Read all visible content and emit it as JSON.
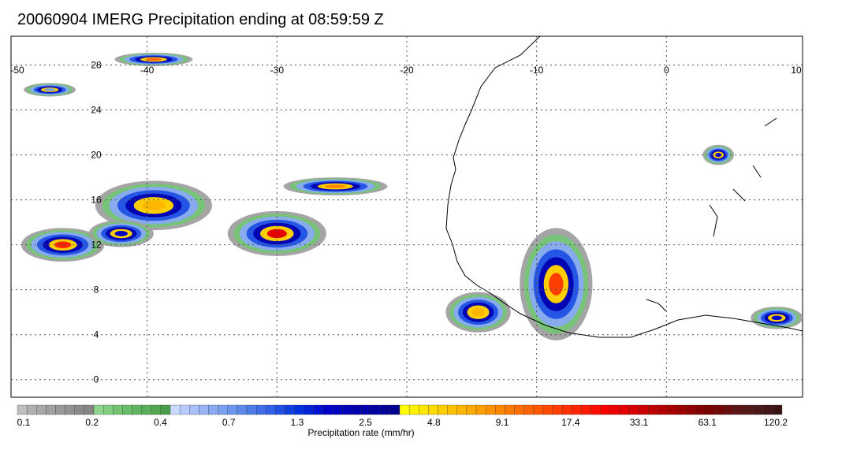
{
  "title": "20060904 IMERG Precipitation ending at 08:59:59 Z",
  "map": {
    "lon_range": [
      -50,
      10
    ],
    "lat_range": [
      -1,
      30
    ],
    "lon_ticks": [
      "-50",
      "-40",
      "-30",
      "-20",
      "-10",
      "0",
      "10"
    ],
    "lon_values": [
      -50,
      -40,
      -30,
      -20,
      -10,
      0,
      10
    ],
    "lat_ticks": [
      "0",
      "4",
      "8",
      "12",
      "16",
      "20",
      "24",
      "28"
    ],
    "lat_values": [
      0,
      4,
      8,
      12,
      16,
      20,
      24,
      28
    ],
    "grid": true,
    "coastline": "West Africa"
  },
  "colorbar": {
    "title": "Precipitation rate (mm/hr)",
    "labels": [
      "0.1",
      "0.2",
      "0.4",
      "0.7",
      "1.3",
      "2.5",
      "4.8",
      "9.1",
      "17.4",
      "33.1",
      "63.1",
      "120.2"
    ],
    "colors": [
      "#bdbdbd",
      "#b0b0b0",
      "#a8a8a8",
      "#a0a0a0",
      "#999999",
      "#929292",
      "#8a8a8a",
      "#858585",
      "#8fd48f",
      "#80cc80",
      "#74c474",
      "#6abd6a",
      "#62b562",
      "#5aad5a",
      "#52a552",
      "#4a9d4a",
      "#c8d8ff",
      "#b8ccff",
      "#a8c0fa",
      "#98b4f5",
      "#88aaf2",
      "#7aa0f0",
      "#6c96ee",
      "#5c8aec",
      "#4e7cea",
      "#3f6ee8",
      "#3060e6",
      "#2050e4",
      "#1040e0",
      "#0030dc",
      "#0020d8",
      "#0010d0",
      "#0000c8",
      "#0000c0",
      "#0000b8",
      "#0000b0",
      "#0000a8",
      "#0000a0",
      "#000098",
      "#000090",
      "#ffff00",
      "#fff200",
      "#ffe600",
      "#ffda00",
      "#ffce00",
      "#ffc200",
      "#ffb600",
      "#ffaa00",
      "#ff9e00",
      "#ff9200",
      "#ff8600",
      "#ff7a00",
      "#ff6e00",
      "#ff6200",
      "#ff5600",
      "#ff4a00",
      "#ff3e00",
      "#ff3200",
      "#ff2600",
      "#ff1a00",
      "#ff0e00",
      "#f80000",
      "#ee0000",
      "#e40000",
      "#d80000",
      "#cc0000",
      "#c00000",
      "#b40000",
      "#a80000",
      "#9c0000",
      "#900000",
      "#840000",
      "#7a0000",
      "#700808",
      "#661010",
      "#5c1414",
      "#521818",
      "#4a1818",
      "#421616",
      "#3a1414"
    ]
  },
  "storms": [
    {
      "lon": -46.5,
      "lat": 12.0,
      "rx": 3.2,
      "ry": 1.5,
      "peak": "#ff2600"
    },
    {
      "lon": -39.5,
      "lat": 15.5,
      "rx": 4.5,
      "ry": 2.2,
      "peak": "#ffb600"
    },
    {
      "lon": -42.0,
      "lat": 13.0,
      "rx": 2.5,
      "ry": 1.2,
      "peak": "#0000c8"
    },
    {
      "lon": -30.0,
      "lat": 13.0,
      "rx": 3.8,
      "ry": 2.0,
      "peak": "#e40000"
    },
    {
      "lon": -25.5,
      "lat": 17.2,
      "rx": 4.0,
      "ry": 0.8,
      "peak": "#ff8600"
    },
    {
      "lon": -8.5,
      "lat": 8.5,
      "rx": 2.8,
      "ry": 5.0,
      "peak": "#ff3e00"
    },
    {
      "lon": -14.5,
      "lat": 6.0,
      "rx": 2.5,
      "ry": 1.8,
      "peak": "#ffb600"
    },
    {
      "lon": 4.0,
      "lat": 20.0,
      "rx": 1.2,
      "ry": 0.9,
      "peak": "#0000c8"
    },
    {
      "lon": 8.5,
      "lat": 5.5,
      "rx": 2.0,
      "ry": 1.0,
      "peak": "#0000c8"
    },
    {
      "lon": -39.5,
      "lat": 28.5,
      "rx": 3.0,
      "ry": 0.6,
      "peak": "#ff6200"
    },
    {
      "lon": -47.5,
      "lat": 25.8,
      "rx": 2.0,
      "ry": 0.6,
      "peak": "#7aa0f0"
    }
  ]
}
